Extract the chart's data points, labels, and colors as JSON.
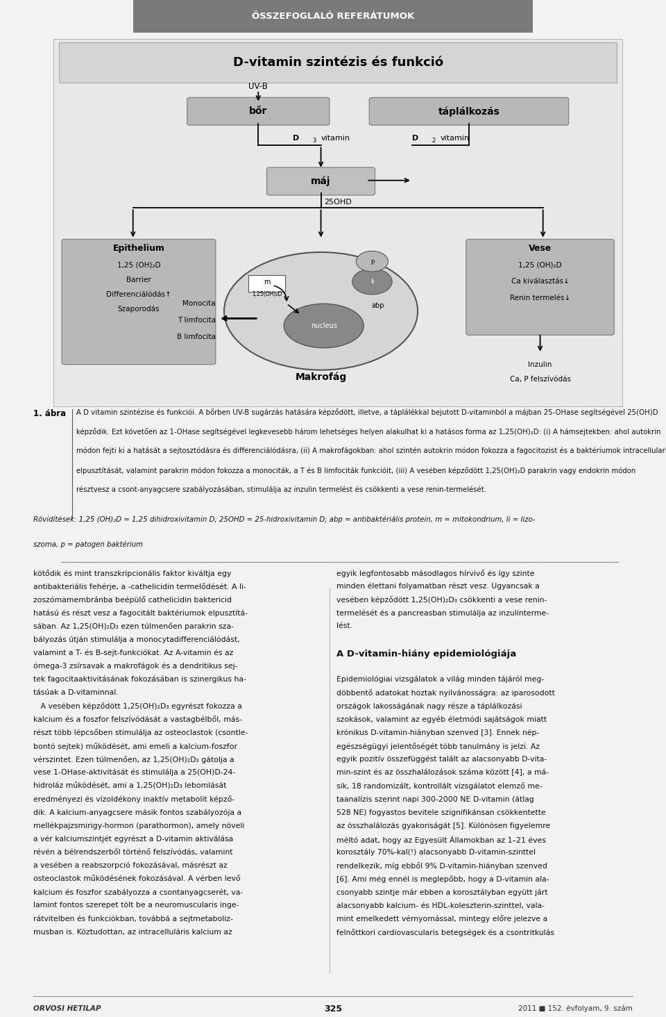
{
  "header_text": "ÖSSZEFOGLALÓ REFERÁTUMOK",
  "header_bg": "#7a7a7a",
  "header_text_color": "#ffffff",
  "diagram_title": "D-vitamin szintézis és funkció",
  "diagram_bg": "#e0e0e0",
  "diagram_title_bg": "#d0d0d0",
  "box_bg_dark": "#b0b0b0",
  "box_bg_mid": "#c0c0c0",
  "page_bg": "#f2f2f2",
  "caption_title": "1. ábra",
  "abbrev_line1": "Rövidítések: 1,25 (OH)₂D = 1,25 dihidroxivitamin D; 25OHD = 25-hidroxivitamin D; abp = antibaktériális protein, m = mitokondrium, li = lizo-",
  "abbrev_line2": "szoma, p = patogen baktérium"
}
